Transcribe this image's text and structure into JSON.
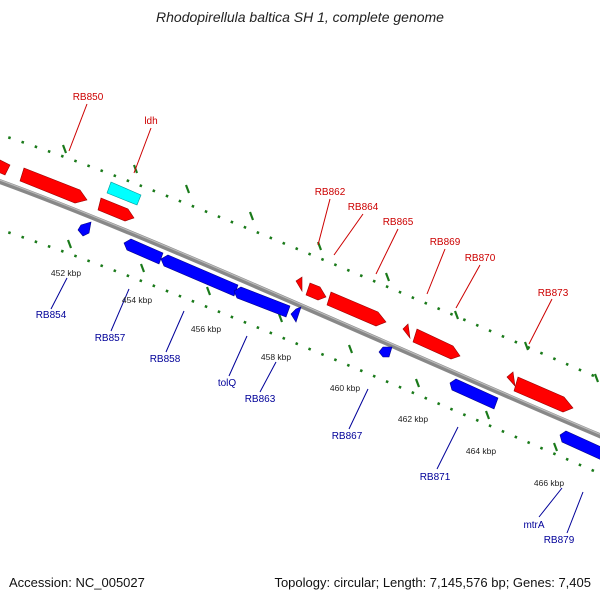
{
  "title": "Rhodopirellula baltica SH 1, complete genome",
  "footer": {
    "accession": "Accession: NC_005027",
    "summary": "Topology: circular; Length: 7,145,576 bp; Genes: 7,405"
  },
  "colors": {
    "forward": "#ff0000",
    "reverse": "#0000ff",
    "rna": "#00ffff",
    "backbone": "#888888",
    "ticks": "#1a7a1a",
    "fwd_label": "#cc0000",
    "rev_label": "#000099"
  },
  "scale_labels": [
    "452 kbp",
    "454 kbp",
    "456 kbp",
    "458 kbp",
    "460 kbp",
    "462 kbp",
    "464 kbp",
    "466 kbp"
  ],
  "gene_labels": {
    "forward": [
      "RB850",
      "ldh",
      "RB862",
      "RB864",
      "RB865",
      "RB869",
      "RB870",
      "RB873"
    ],
    "reverse": [
      "RB854",
      "RB857",
      "RB858",
      "tolQ",
      "RB863",
      "RB867",
      "RB871",
      "mtrA",
      "RB879"
    ]
  }
}
